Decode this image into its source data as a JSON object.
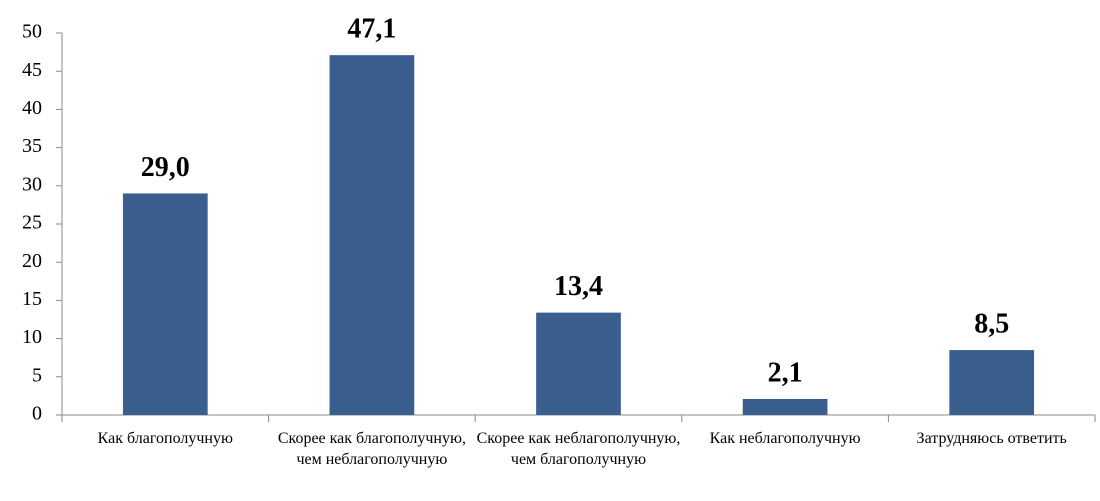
{
  "chart_data": {
    "type": "bar",
    "categories": [
      "Как благополучную",
      "Скорее как благополучную, чем неблагополучную",
      "Скорее как неблагополучную, чем благополучную",
      "Как неблагополучную",
      "Затрудняюсь ответить"
    ],
    "values": [
      29.0,
      47.1,
      13.4,
      2.1,
      8.5
    ],
    "value_labels": [
      "29,0",
      "47,1",
      "13,4",
      "2,1",
      "8,5"
    ],
    "color": "#3a5f8f",
    "ylim": [
      0,
      50
    ],
    "yticks": [
      0,
      5,
      10,
      15,
      20,
      25,
      30,
      35,
      40,
      45,
      50
    ]
  }
}
